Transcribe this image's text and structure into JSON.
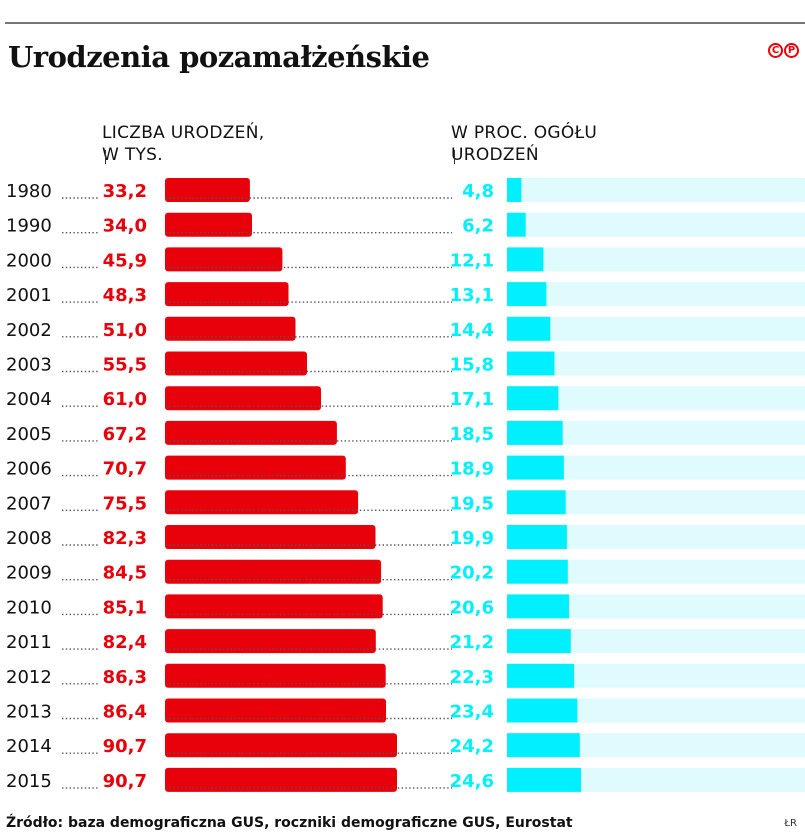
{
  "title": "Urodzenia pozamałżeńskie",
  "logo": [
    "C",
    "P"
  ],
  "credit": "ŁR",
  "source": "Źródło: baza demograficzna GUS, roczniki demograficzne GUS, Eurostat",
  "colors": {
    "red": "#e8000a",
    "cyan": "#00f0ff",
    "cyan_light": "#dffbfd"
  },
  "chart_data": {
    "type": "bar",
    "title": "Urodzenia pozamałżeńskie",
    "categories": [
      "1980",
      "1990",
      "2000",
      "2001",
      "2002",
      "2003",
      "2004",
      "2005",
      "2006",
      "2007",
      "2008",
      "2009",
      "2010",
      "2011",
      "2012",
      "2013",
      "2014",
      "2015"
    ],
    "series": [
      {
        "name": "LICZBA URODZEŃ,\nW TYS.",
        "values": [
          33.2,
          34.0,
          45.9,
          48.3,
          51.0,
          55.5,
          61.0,
          67.2,
          70.7,
          75.5,
          82.3,
          84.5,
          85.1,
          82.4,
          86.3,
          86.4,
          90.7,
          90.7
        ],
        "labels": [
          "33,2",
          "34,0",
          "45,9",
          "48,3",
          "51,0",
          "55,5",
          "61,0",
          "67,2",
          "70,7",
          "75,5",
          "82,3",
          "84,5",
          "85,1",
          "82,4",
          "86,3",
          "86,4",
          "90,7",
          "90,7"
        ],
        "color": "#e8000a"
      },
      {
        "name": "W PROC. OGÓŁU\nURODZEŃ",
        "values": [
          4.8,
          6.2,
          12.1,
          13.1,
          14.4,
          15.8,
          17.1,
          18.5,
          18.9,
          19.5,
          19.9,
          20.2,
          20.6,
          21.2,
          22.3,
          23.4,
          24.2,
          24.6
        ],
        "labels": [
          "4,8",
          "6,2",
          "12,1",
          "13,1",
          "14,4",
          "15,8",
          "17,1",
          "18,5",
          "18,9",
          "19,5",
          "19,9",
          "20,2",
          "20,6",
          "21,2",
          "22,3",
          "23,4",
          "24,2",
          "24,6"
        ],
        "color": "#00f0ff",
        "max": 100
      }
    ]
  }
}
